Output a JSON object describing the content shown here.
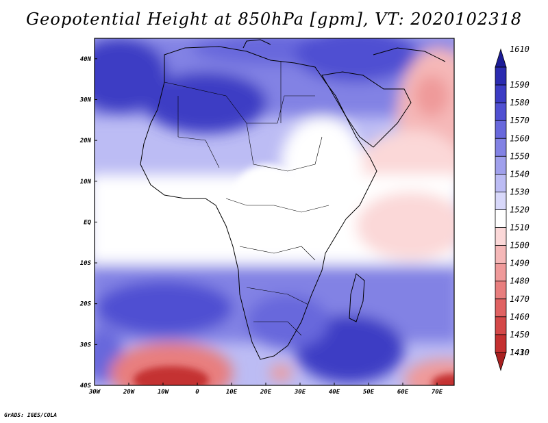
{
  "title": "Geopotential Height at 850hPa [gpm], VT: 2020102318",
  "credit": "GrADS: IGES/COLA",
  "colors": {
    "land_outline": "#000000",
    "background": "#ffffff"
  },
  "map": {
    "lon_range": [
      -30,
      75
    ],
    "lat_range": [
      -40,
      45
    ],
    "lon_ticks": [
      {
        "value": -30,
        "label": "30W"
      },
      {
        "value": -20,
        "label": "20W"
      },
      {
        "value": -10,
        "label": "10W"
      },
      {
        "value": 0,
        "label": "0"
      },
      {
        "value": 10,
        "label": "10E"
      },
      {
        "value": 20,
        "label": "20E"
      },
      {
        "value": 30,
        "label": "30E"
      },
      {
        "value": 40,
        "label": "40E"
      },
      {
        "value": 50,
        "label": "50E"
      },
      {
        "value": 60,
        "label": "60E"
      },
      {
        "value": 70,
        "label": "70E"
      }
    ],
    "lat_ticks": [
      {
        "value": 40,
        "label": "40N"
      },
      {
        "value": 30,
        "label": "30N"
      },
      {
        "value": 20,
        "label": "20N"
      },
      {
        "value": 10,
        "label": "10N"
      },
      {
        "value": 0,
        "label": "EQ"
      },
      {
        "value": -10,
        "label": "10S"
      },
      {
        "value": -20,
        "label": "20S"
      },
      {
        "value": -30,
        "label": "30S"
      },
      {
        "value": -40,
        "label": "40S"
      }
    ]
  },
  "colorbar": {
    "unit": "gpm",
    "levels": [
      {
        "label": "1610",
        "color": "#1c1c96"
      },
      {
        "label": "1590",
        "color": "#2b2bb0"
      },
      {
        "label": "1580",
        "color": "#3c3cc4"
      },
      {
        "label": "1570",
        "color": "#5050d2"
      },
      {
        "label": "1560",
        "color": "#6868dc"
      },
      {
        "label": "1550",
        "color": "#8282e4"
      },
      {
        "label": "1540",
        "color": "#a0a0ec"
      },
      {
        "label": "1530",
        "color": "#bcbcf4"
      },
      {
        "label": "1520",
        "color": "#d8d8fa"
      },
      {
        "label": "1510",
        "color": "#ffffff"
      },
      {
        "label": "1500",
        "color": "#fbd8d8"
      },
      {
        "label": "1490",
        "color": "#f5b8b8"
      },
      {
        "label": "1480",
        "color": "#ef9a9a"
      },
      {
        "label": "1470",
        "color": "#e87e7e"
      },
      {
        "label": "1460",
        "color": "#e06262"
      },
      {
        "label": "1450",
        "color": "#d44848"
      },
      {
        "label": "1430",
        "color": "#c43030"
      },
      {
        "label": "1410",
        "color": "#a82020"
      }
    ]
  }
}
